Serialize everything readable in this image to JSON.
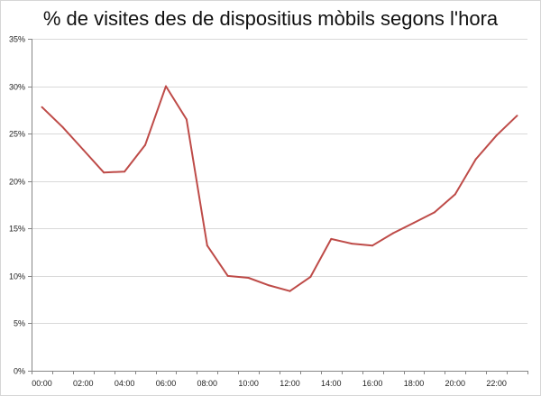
{
  "chart_data": {
    "type": "line",
    "title": "% de visites des de dispositius mòbils segons l'hora",
    "xlabel": "",
    "ylabel": "",
    "ylim": [
      0,
      35
    ],
    "y_ticks": [
      "0%",
      "5%",
      "10%",
      "15%",
      "20%",
      "25%",
      "30%",
      "35%"
    ],
    "y_tick_values": [
      0,
      5,
      10,
      15,
      20,
      25,
      30,
      35
    ],
    "x": [
      "00:00",
      "01:00",
      "02:00",
      "03:00",
      "04:00",
      "05:00",
      "06:00",
      "07:00",
      "08:00",
      "09:00",
      "10:00",
      "11:00",
      "12:00",
      "13:00",
      "14:00",
      "15:00",
      "16:00",
      "17:00",
      "18:00",
      "19:00",
      "20:00",
      "21:00",
      "22:00",
      "23:00"
    ],
    "x_tick_labels": [
      "00:00",
      "",
      "02:00",
      "",
      "04:00",
      "",
      "06:00",
      "",
      "08:00",
      "",
      "10:00",
      "",
      "12:00",
      "",
      "14:00",
      "",
      "16:00",
      "",
      "18:00",
      "",
      "20:00",
      "",
      "22:00",
      ""
    ],
    "series": [
      {
        "values": [
          27.8,
          25.7,
          23.3,
          20.9,
          21.0,
          23.8,
          30.0,
          26.5,
          13.2,
          10.0,
          9.8,
          9.0,
          8.4,
          9.9,
          13.9,
          13.4,
          13.2,
          14.5,
          15.6,
          16.7,
          18.6,
          22.3,
          24.8,
          26.9
        ],
        "color": "#be4b48"
      }
    ],
    "grid": true,
    "legend": "none",
    "colors": {
      "grid": "#d9d9d9",
      "axis": "#868686",
      "line": "#be4b48"
    }
  }
}
